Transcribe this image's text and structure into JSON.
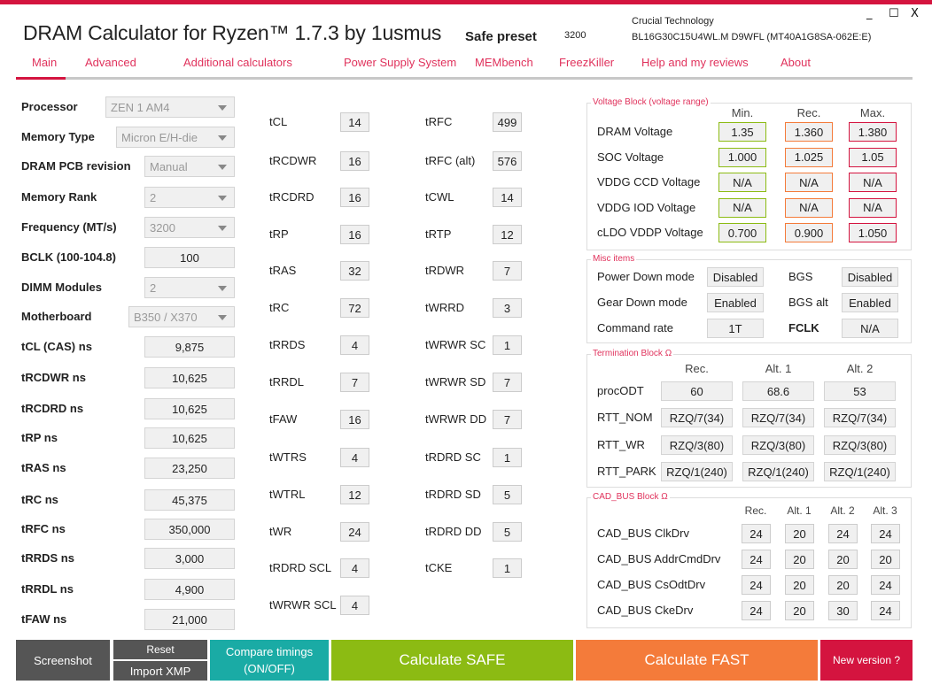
{
  "app": {
    "title": "DRAM Calculator for Ryzen™ 1.7.3 by 1usmus",
    "preset_label": "Safe preset",
    "preset_value": "3200",
    "module_vendor": "Crucial Technology",
    "module_part": "BL16G30C15U4WL.M D9WFL (MT40A1G8SA-062E:E)",
    "minimize": "_",
    "maximize": "☐",
    "close": "X"
  },
  "tabs": [
    "Main",
    "Advanced",
    "Additional calculators",
    "Power Supply System",
    "MEMbench",
    "FreezKiller",
    "Help and my reviews",
    "About"
  ],
  "left": [
    {
      "label": "Processor",
      "value": "ZEN 1 AM4",
      "type": "combo"
    },
    {
      "label": "Memory Type",
      "value": "Micron E/H-die",
      "type": "combo"
    },
    {
      "label": "DRAM PCB revision",
      "value": "Manual",
      "type": "combo"
    },
    {
      "label": "Memory Rank",
      "value": "2",
      "type": "combo"
    },
    {
      "label": "Frequency (MT/s)",
      "value": "3200",
      "type": "combo"
    },
    {
      "label": "BCLK (100-104.8)",
      "value": "100",
      "type": "input"
    },
    {
      "label": "DIMM Modules",
      "value": "2",
      "type": "combo"
    },
    {
      "label": "Motherboard",
      "value": "B350 / X370",
      "type": "combo"
    },
    {
      "label": "tCL (CAS) ns",
      "value": "9,875",
      "type": "input"
    },
    {
      "label": "tRCDWR ns",
      "value": "10,625",
      "type": "input"
    },
    {
      "label": "tRCDRD ns",
      "value": "10,625",
      "type": "input"
    },
    {
      "label": "tRP ns",
      "value": "10,625",
      "type": "input"
    },
    {
      "label": "tRAS ns",
      "value": "23,250",
      "type": "input"
    },
    {
      "label": "tRC ns",
      "value": "45,375",
      "type": "input"
    },
    {
      "label": "tRFC ns",
      "value": "350,000",
      "type": "input"
    },
    {
      "label": "tRRDS ns",
      "value": "3,000",
      "type": "input"
    },
    {
      "label": "tRRDL ns",
      "value": "4,900",
      "type": "input"
    },
    {
      "label": "tFAW ns",
      "value": "21,000",
      "type": "input"
    }
  ],
  "timings_col1": [
    [
      "tCL",
      "14"
    ],
    [
      "tRCDWR",
      "16"
    ],
    [
      "tRCDRD",
      "16"
    ],
    [
      "tRP",
      "16"
    ],
    [
      "tRAS",
      "32"
    ],
    [
      "tRC",
      "72"
    ],
    [
      "tRRDS",
      "4"
    ],
    [
      "tRRDL",
      "7"
    ],
    [
      "tFAW",
      "16"
    ],
    [
      "tWTRS",
      "4"
    ],
    [
      "tWTRL",
      "12"
    ],
    [
      "tWR",
      "24"
    ],
    [
      "tRDRD SCL",
      "4"
    ],
    [
      "tWRWR SCL",
      "4"
    ]
  ],
  "timings_col2": [
    [
      "tRFC",
      "499"
    ],
    [
      "tRFC (alt)",
      "576"
    ],
    [
      "tCWL",
      "14"
    ],
    [
      "tRTP",
      "12"
    ],
    [
      "tRDWR",
      "7"
    ],
    [
      "tWRRD",
      "3"
    ],
    [
      "tWRWR SC",
      "1"
    ],
    [
      "tWRWR SD",
      "7"
    ],
    [
      "tWRWR DD",
      "7"
    ],
    [
      "tRDRD SC",
      "1"
    ],
    [
      "tRDRD SD",
      "5"
    ],
    [
      "tRDRD DD",
      "5"
    ],
    [
      "tCKE",
      "1"
    ]
  ],
  "voltage": {
    "title": "Voltage Block (voltage range)",
    "headers": [
      "Min.",
      "Rec.",
      "Max."
    ],
    "colors": [
      "#8cbb13",
      "#f47b3a",
      "#d4143f"
    ],
    "rows": [
      [
        "DRAM Voltage",
        "1.35",
        "1.360",
        "1.380"
      ],
      [
        "SOC Voltage",
        "1.000",
        "1.025",
        "1.05"
      ],
      [
        "VDDG  CCD Voltage",
        "N/A",
        "N/A",
        "N/A"
      ],
      [
        "VDDG  IOD Voltage",
        "N/A",
        "N/A",
        "N/A"
      ],
      [
        "cLDO VDDP Voltage",
        "0.700",
        "0.900",
        "1.050"
      ]
    ]
  },
  "misc": {
    "title": "Misc items",
    "rows": [
      [
        "Power Down mode",
        "Disabled",
        "BGS",
        "Disabled"
      ],
      [
        "Gear Down mode",
        "Enabled",
        "BGS alt",
        "Enabled"
      ],
      [
        "Command rate",
        "1T",
        "FCLK",
        "N/A"
      ]
    ]
  },
  "termination": {
    "title": "Termination Block Ω",
    "headers": [
      "Rec.",
      "Alt. 1",
      "Alt. 2"
    ],
    "rows": [
      [
        "procODT",
        "60",
        "68.6",
        "53"
      ],
      [
        "RTT_NOM",
        "RZQ/7(34)",
        "RZQ/7(34)",
        "RZQ/7(34)"
      ],
      [
        "RTT_WR",
        "RZQ/3(80)",
        "RZQ/3(80)",
        "RZQ/3(80)"
      ],
      [
        "RTT_PARK",
        "RZQ/1(240)",
        "RZQ/1(240)",
        "RZQ/1(240)"
      ]
    ]
  },
  "cadbus": {
    "title": "CAD_BUS Block Ω",
    "headers": [
      "Rec.",
      "Alt. 1",
      "Alt. 2",
      "Alt. 3"
    ],
    "rows": [
      [
        "CAD_BUS ClkDrv",
        "24",
        "20",
        "24",
        "24"
      ],
      [
        "CAD_BUS AddrCmdDrv",
        "24",
        "20",
        "20",
        "20"
      ],
      [
        "CAD_BUS CsOdtDrv",
        "24",
        "20",
        "20",
        "24"
      ],
      [
        "CAD_BUS CkeDrv",
        "24",
        "20",
        "30",
        "24"
      ]
    ]
  },
  "buttons": {
    "screenshot": "Screenshot",
    "reset": "Reset",
    "import_xmp": "Import XMP",
    "compare": "Compare timings (ON/OFF)",
    "safe": "Calculate SAFE",
    "fast": "Calculate FAST",
    "new_version": "New version ?"
  }
}
